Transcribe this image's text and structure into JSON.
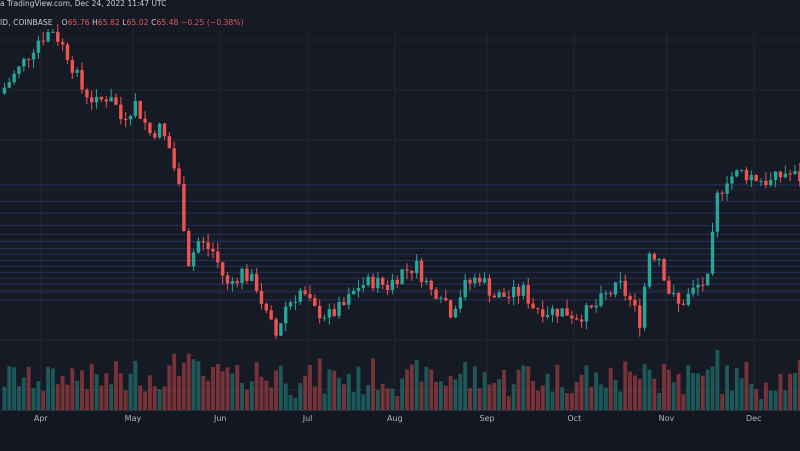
{
  "header": {
    "symbol_tail": "ID, COINBASE",
    "source": "a TradingView.com, Dec 24, 2022 11:47 UTC",
    "open_label": "O",
    "open": "65.76",
    "high_label": "H",
    "high": "65.82",
    "low_label": "L",
    "low": "65.02",
    "close_label": "C",
    "close": "65.48",
    "change": "−0.25 (−0.38%)"
  },
  "colors": {
    "background": "#161a25",
    "up": "#26a69a",
    "down": "#ef5350",
    "grid": "#232733",
    "level_line": "#2a3a78",
    "axis_text": "#b2b5be"
  },
  "chart_data": {
    "type": "candlestick",
    "series_name": "",
    "x_tick_labels": [
      "Apr",
      "May",
      "Jun",
      "Jul",
      "Aug",
      "Sep",
      "Oct",
      "Nov",
      "Dec"
    ],
    "ylim": [
      40,
      115
    ],
    "grid": true,
    "price_path": [
      [
        0,
        95
      ],
      [
        4,
        100
      ],
      [
        8,
        106
      ],
      [
        11,
        108
      ],
      [
        14,
        103
      ],
      [
        17,
        96
      ],
      [
        20,
        93
      ],
      [
        23,
        95
      ],
      [
        25,
        90
      ],
      [
        28,
        93
      ],
      [
        31,
        87
      ],
      [
        33,
        88
      ],
      [
        35,
        84
      ],
      [
        37,
        76
      ],
      [
        39,
        61
      ],
      [
        41,
        65
      ],
      [
        44,
        63
      ],
      [
        47,
        56
      ],
      [
        50,
        59
      ],
      [
        53,
        56
      ],
      [
        55,
        50
      ],
      [
        57,
        46
      ],
      [
        59,
        52
      ],
      [
        62,
        55
      ],
      [
        65,
        51
      ],
      [
        68,
        50
      ],
      [
        71,
        52
      ],
      [
        74,
        56
      ],
      [
        77,
        57
      ],
      [
        80,
        56
      ],
      [
        83,
        59
      ],
      [
        86,
        60
      ],
      [
        89,
        55
      ],
      [
        91,
        55
      ],
      [
        93,
        51
      ],
      [
        96,
        56
      ],
      [
        99,
        58
      ],
      [
        102,
        54
      ],
      [
        105,
        54
      ],
      [
        108,
        55
      ],
      [
        110,
        52
      ],
      [
        113,
        51
      ],
      [
        116,
        51
      ],
      [
        119,
        50
      ],
      [
        122,
        51
      ],
      [
        125,
        54
      ],
      [
        128,
        56
      ],
      [
        130,
        53
      ],
      [
        132,
        49
      ],
      [
        134,
        63
      ],
      [
        136,
        62
      ],
      [
        138,
        55
      ],
      [
        140,
        52
      ],
      [
        142,
        54
      ],
      [
        144,
        56
      ],
      [
        146,
        57
      ],
      [
        148,
        74
      ],
      [
        150,
        78
      ],
      [
        153,
        79
      ],
      [
        156,
        78
      ],
      [
        159,
        77
      ],
      [
        162,
        79
      ],
      [
        165,
        78
      ]
    ],
    "levels": [
      76.5,
      73.2,
      70.8,
      68.3,
      66.5,
      65.0,
      63.6,
      62.4,
      61.2,
      60.0,
      58.8,
      57.6,
      56.4,
      54.8,
      53.2
    ],
    "volume_ylim": [
      0,
      100
    ]
  },
  "series_lengths": {
    "candles": 165
  }
}
